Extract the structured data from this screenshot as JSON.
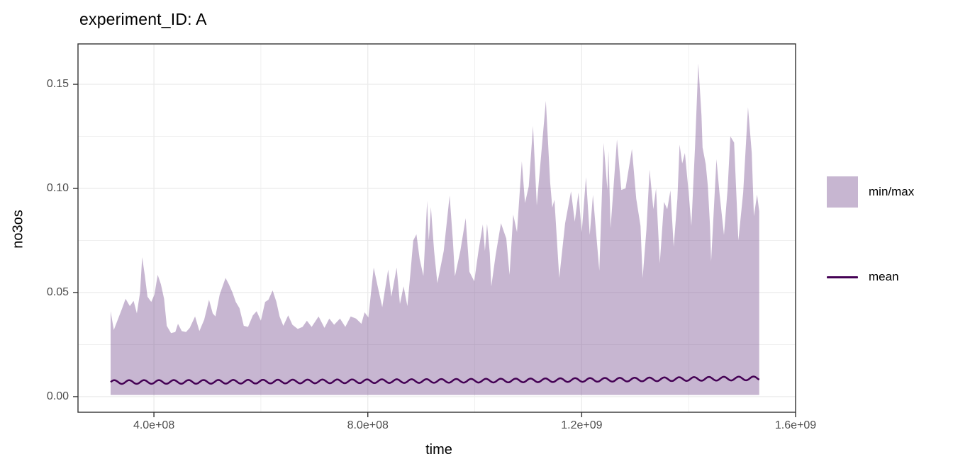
{
  "title": "experiment_ID: A",
  "axes": {
    "x": {
      "label": "time",
      "ticks": [
        "4.0e+08",
        "8.0e+08",
        "1.2e+09",
        "1.6e+09"
      ],
      "tick_values": [
        400000000.0,
        800000000.0,
        1200000000.0,
        1600000000.0
      ],
      "minor_values": [
        600000000.0,
        1000000000.0,
        1400000000.0
      ],
      "domain": [
        258000000.0,
        1600000000.0
      ]
    },
    "y": {
      "label": "no3os",
      "ticks": [
        "0.00",
        "0.05",
        "0.10",
        "0.15"
      ],
      "tick_values": [
        0,
        0.05,
        0.1,
        0.15
      ],
      "minor_values": [
        0.025,
        0.075,
        0.125
      ],
      "domain": [
        -0.0075,
        0.1694
      ]
    }
  },
  "legend": {
    "items": [
      {
        "label": "min/max",
        "type": "fill"
      },
      {
        "label": "mean",
        "type": "line"
      }
    ]
  },
  "colors": {
    "ribbon_fill": "rgba(122,80,146,0.42)",
    "mean_line": "#440154",
    "grid": "#ebebeb",
    "panel_border": "#333333",
    "tick_text": "#4d4d4d",
    "text": "#000000"
  },
  "chart_data": {
    "type": "area",
    "title": "experiment_ID: A",
    "xlabel": "time",
    "ylabel": "no3os",
    "x_range": [
      319000000.0,
      1532000000.0
    ],
    "legend_position": "right",
    "grid": true,
    "series": [
      {
        "name": "min/max",
        "type": "ribbon",
        "min_constant": 0.0008,
        "points": [
          [
            319000000.0,
            0.041
          ],
          [
            325000000.0,
            0.032
          ],
          [
            331000000.0,
            0.036
          ],
          [
            340000000.0,
            0.042
          ],
          [
            347000000.0,
            0.047
          ],
          [
            355000000.0,
            0.0435
          ],
          [
            362000000.0,
            0.046
          ],
          [
            368000000.0,
            0.04
          ],
          [
            374000000.0,
            0.05
          ],
          [
            378000000.0,
            0.067
          ],
          [
            383000000.0,
            0.058
          ],
          [
            388000000.0,
            0.048
          ],
          [
            395000000.0,
            0.0455
          ],
          [
            401000000.0,
            0.049
          ],
          [
            407000000.0,
            0.0585
          ],
          [
            413000000.0,
            0.054
          ],
          [
            419000000.0,
            0.047
          ],
          [
            424000000.0,
            0.034
          ],
          [
            432000000.0,
            0.0305
          ],
          [
            440000000.0,
            0.031
          ],
          [
            445000000.0,
            0.035
          ],
          [
            452000000.0,
            0.0315
          ],
          [
            460000000.0,
            0.031
          ],
          [
            467000000.0,
            0.033
          ],
          [
            477000000.0,
            0.0385
          ],
          [
            485000000.0,
            0.0315
          ],
          [
            494000000.0,
            0.037
          ],
          [
            503000000.0,
            0.0465
          ],
          [
            510000000.0,
            0.04
          ],
          [
            515000000.0,
            0.0385
          ],
          [
            523000000.0,
            0.049
          ],
          [
            534000000.0,
            0.057
          ],
          [
            540000000.0,
            0.054
          ],
          [
            547000000.0,
            0.05
          ],
          [
            553000000.0,
            0.0455
          ],
          [
            560000000.0,
            0.0425
          ],
          [
            568000000.0,
            0.034
          ],
          [
            576000000.0,
            0.0335
          ],
          [
            585000000.0,
            0.039
          ],
          [
            592000000.0,
            0.041
          ],
          [
            600000000.0,
            0.0365
          ],
          [
            608000000.0,
            0.0455
          ],
          [
            614000000.0,
            0.0465
          ],
          [
            622000000.0,
            0.051
          ],
          [
            629000000.0,
            0.0455
          ],
          [
            635000000.0,
            0.0385
          ],
          [
            642000000.0,
            0.034
          ],
          [
            651000000.0,
            0.039
          ],
          [
            659000000.0,
            0.0345
          ],
          [
            669000000.0,
            0.0325
          ],
          [
            678000000.0,
            0.0335
          ],
          [
            686000000.0,
            0.0365
          ],
          [
            695000000.0,
            0.0335
          ],
          [
            708000000.0,
            0.0385
          ],
          [
            719000000.0,
            0.033
          ],
          [
            728000000.0,
            0.0375
          ],
          [
            737000000.0,
            0.0345
          ],
          [
            748000000.0,
            0.0375
          ],
          [
            758000000.0,
            0.0335
          ],
          [
            768000000.0,
            0.0385
          ],
          [
            778000000.0,
            0.0375
          ],
          [
            788000000.0,
            0.035
          ],
          [
            794000000.0,
            0.0405
          ],
          [
            801000000.0,
            0.038
          ],
          [
            811000000.0,
            0.062
          ],
          [
            818000000.0,
            0.0535
          ],
          [
            827000000.0,
            0.043
          ],
          [
            838000000.0,
            0.061
          ],
          [
            844000000.0,
            0.048
          ],
          [
            854000000.0,
            0.062
          ],
          [
            860000000.0,
            0.0445
          ],
          [
            867000000.0,
            0.053
          ],
          [
            874000000.0,
            0.0435
          ],
          [
            880000000.0,
            0.06
          ],
          [
            885000000.0,
            0.075
          ],
          [
            891000000.0,
            0.078
          ],
          [
            897000000.0,
            0.066
          ],
          [
            904000000.0,
            0.058
          ],
          [
            911000000.0,
            0.094
          ],
          [
            914000000.0,
            0.075
          ],
          [
            918000000.0,
            0.091
          ],
          [
            924000000.0,
            0.07
          ],
          [
            930000000.0,
            0.0545
          ],
          [
            942000000.0,
            0.07
          ],
          [
            953000000.0,
            0.0966
          ],
          [
            959000000.0,
            0.0754
          ],
          [
            963000000.0,
            0.0578
          ],
          [
            973000000.0,
            0.07
          ],
          [
            983000000.0,
            0.0857
          ],
          [
            990000000.0,
            0.06
          ],
          [
            999000000.0,
            0.0554
          ],
          [
            1007000000.0,
            0.07
          ],
          [
            1015000000.0,
            0.0827
          ],
          [
            1019000000.0,
            0.07
          ],
          [
            1023000000.0,
            0.083
          ],
          [
            1028000000.0,
            0.069
          ],
          [
            1031000000.0,
            0.053
          ],
          [
            1039000000.0,
            0.068
          ],
          [
            1049000000.0,
            0.0833
          ],
          [
            1059000000.0,
            0.0759
          ],
          [
            1065000000.0,
            0.0585
          ],
          [
            1072000000.0,
            0.0874
          ],
          [
            1079000000.0,
            0.079
          ],
          [
            1088000000.0,
            0.113
          ],
          [
            1094000000.0,
            0.093
          ],
          [
            1101000000.0,
            0.101
          ],
          [
            1109000000.0,
            0.13
          ],
          [
            1116000000.0,
            0.0918
          ],
          [
            1133000000.0,
            0.142
          ],
          [
            1141000000.0,
            0.1027
          ],
          [
            1145000000.0,
            0.0908
          ],
          [
            1149000000.0,
            0.0946
          ],
          [
            1158000000.0,
            0.057
          ],
          [
            1169000000.0,
            0.0833
          ],
          [
            1180000000.0,
            0.0986
          ],
          [
            1187000000.0,
            0.084
          ],
          [
            1194000000.0,
            0.098
          ],
          [
            1200000000.0,
            0.0789
          ],
          [
            1208000000.0,
            0.1054
          ],
          [
            1215000000.0,
            0.0776
          ],
          [
            1221000000.0,
            0.0969
          ],
          [
            1233000000.0,
            0.0605
          ],
          [
            1241000000.0,
            0.1218
          ],
          [
            1248000000.0,
            0.0993
          ],
          [
            1250000000.0,
            0.118
          ],
          [
            1254000000.0,
            0.081
          ],
          [
            1266000000.0,
            0.1235
          ],
          [
            1274000000.0,
            0.0993
          ],
          [
            1282000000.0,
            0.1
          ],
          [
            1294000000.0,
            0.119
          ],
          [
            1302000000.0,
            0.095
          ],
          [
            1310000000.0,
            0.082
          ],
          [
            1314000000.0,
            0.057
          ],
          [
            1321000000.0,
            0.08
          ],
          [
            1327000000.0,
            0.109
          ],
          [
            1334000000.0,
            0.09
          ],
          [
            1339000000.0,
            0.1
          ],
          [
            1346000000.0,
            0.064
          ],
          [
            1354000000.0,
            0.0935
          ],
          [
            1360000000.0,
            0.09
          ],
          [
            1366000000.0,
            0.099
          ],
          [
            1372000000.0,
            0.072
          ],
          [
            1379000000.0,
            0.095
          ],
          [
            1383000000.0,
            0.121
          ],
          [
            1388000000.0,
            0.112
          ],
          [
            1393000000.0,
            0.117
          ],
          [
            1400000000.0,
            0.098
          ],
          [
            1405000000.0,
            0.082
          ],
          [
            1412000000.0,
            0.12
          ],
          [
            1418000000.0,
            0.16
          ],
          [
            1424000000.0,
            0.135
          ],
          [
            1426000000.0,
            0.1197
          ],
          [
            1432000000.0,
            0.1116
          ],
          [
            1436000000.0,
            0.101
          ],
          [
            1440000000.0,
            0.082
          ],
          [
            1442000000.0,
            0.065
          ],
          [
            1452000000.0,
            0.114
          ],
          [
            1458000000.0,
            0.097
          ],
          [
            1466000000.0,
            0.0776
          ],
          [
            1473000000.0,
            0.1
          ],
          [
            1478000000.0,
            0.125
          ],
          [
            1485000000.0,
            0.122
          ],
          [
            1493000000.0,
            0.075
          ],
          [
            1502000000.0,
            0.098
          ],
          [
            1511000000.0,
            0.139
          ],
          [
            1518000000.0,
            0.117
          ],
          [
            1522000000.0,
            0.0867
          ],
          [
            1528000000.0,
            0.097
          ],
          [
            1532000000.0,
            0.089
          ]
        ]
      },
      {
        "name": "mean",
        "type": "line",
        "anchors": [
          [
            319000000.0,
            0.007
          ],
          [
            500000000.0,
            0.0071
          ],
          [
            700000000.0,
            0.0073
          ],
          [
            900000000.0,
            0.0075
          ],
          [
            1100000000.0,
            0.0078
          ],
          [
            1300000000.0,
            0.0082
          ],
          [
            1450000000.0,
            0.0086
          ],
          [
            1532000000.0,
            0.0088
          ]
        ],
        "wiggle_amplitude": 0.0009,
        "wiggle_period": 27800000.0
      }
    ]
  }
}
